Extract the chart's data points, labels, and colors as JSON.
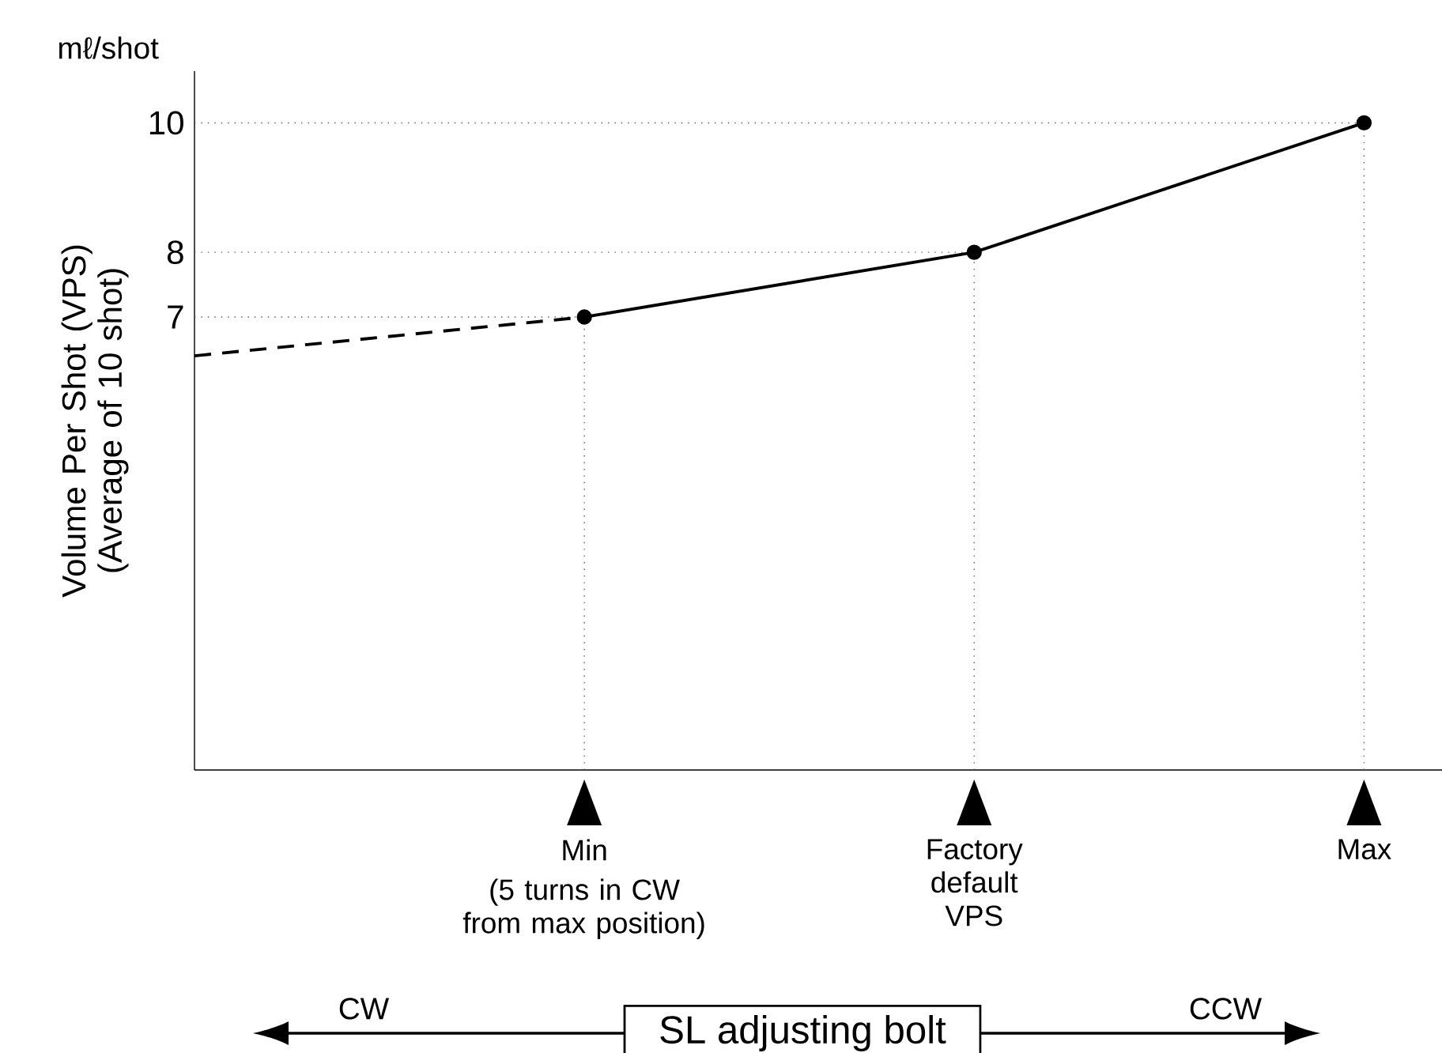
{
  "chart_data": {
    "type": "line",
    "ylabel": "Volume Per Shot (VPS) (Average of 10 shot)",
    "xlabel": "SL adjusting bolt",
    "categories": [
      null,
      "Min",
      "Factory default VPS",
      "Max"
    ],
    "series": [
      {
        "color": "#000000",
        "values": [
          null,
          7,
          8,
          10
        ],
        "marker": "circle",
        "line_style": "solid"
      },
      {
        "color": "#000000",
        "values": [
          6.4,
          7,
          null,
          null
        ],
        "marker": "none",
        "line_style": "dashed"
      }
    ],
    "ylim": [
      0,
      10.8
    ],
    "yticks": [
      7,
      8,
      10
    ],
    "grid": false,
    "ref_lines": [
      {
        "axis": "y",
        "value": 7,
        "line_style": "dotted"
      },
      {
        "axis": "y",
        "value": 8,
        "line_style": "dotted"
      },
      {
        "axis": "y",
        "value": 10,
        "line_style": "dotted"
      },
      {
        "axis": "x",
        "value": "Min",
        "line_style": "dotted"
      },
      {
        "axis": "x",
        "value": "Factory default VPS",
        "line_style": "dotted"
      },
      {
        "axis": "x",
        "value": "Max",
        "line_style": "dotted"
      }
    ],
    "annotations": [
      "mℓ/shot",
      "(5 turns in CW from max position)",
      "CW",
      "CCW"
    ]
  }
}
